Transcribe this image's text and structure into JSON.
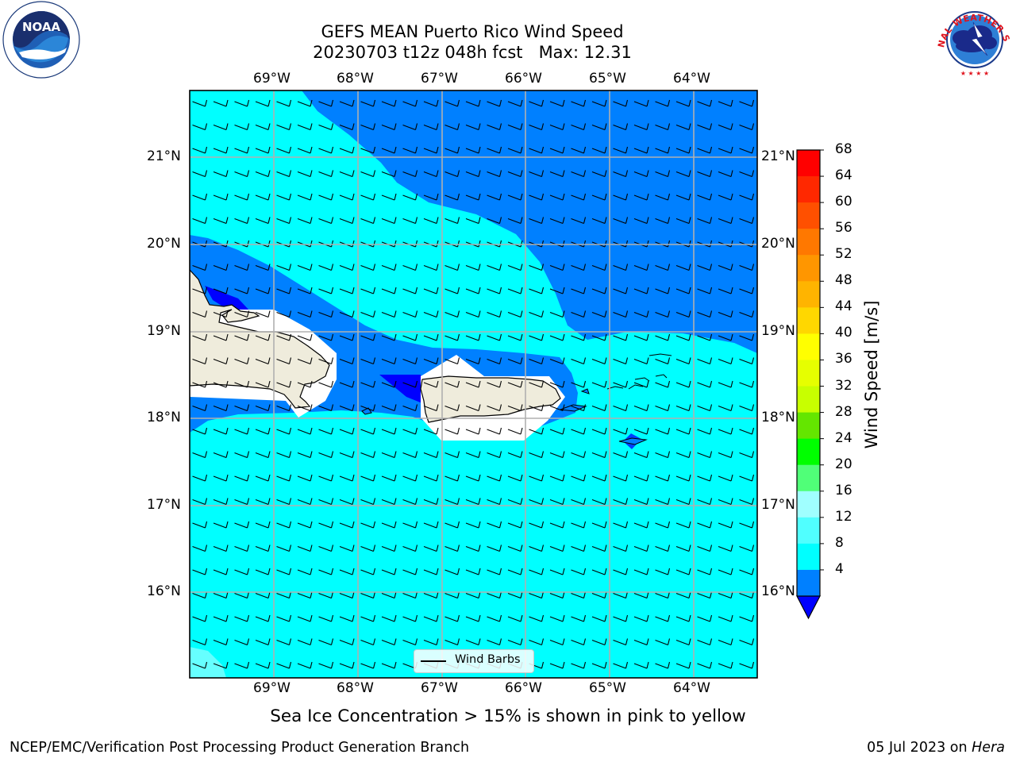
{
  "title": {
    "line1": "GEFS MEAN Puerto Rico Wind Speed",
    "line2": "20230703 t12z 048h fcst   Max: 12.31"
  },
  "logos": {
    "left": "noaa-logo",
    "left_text": "NOAA",
    "left_ring_text": "NATIONAL OCEANIC AND ATMOSPHERIC ADMINISTRATION · U.S. DEPARTMENT OF COMMERCE",
    "right": "nws-logo",
    "right_ring_text": "NATIONAL WEATHER SERVICE"
  },
  "map": {
    "lon_labels": [
      "69°W",
      "68°W",
      "67°W",
      "66°W",
      "65°W",
      "64°W"
    ],
    "lat_labels": [
      "21°N",
      "20°N",
      "19°N",
      "18°N",
      "17°N",
      "16°N"
    ],
    "colors": {
      "land": "#efecdc",
      "wind_4_8": "#0080ff",
      "wind_8_12": "#00ffff",
      "wind_12_16": "#66ffff",
      "wind_below_4": "#0000ff",
      "grid": "#b0b0b0"
    }
  },
  "legend": {
    "label": "Wind Barbs"
  },
  "colorbar": {
    "label": "Wind Speed [m/s]",
    "ticks": [
      "68",
      "64",
      "60",
      "56",
      "52",
      "48",
      "44",
      "40",
      "36",
      "32",
      "28",
      "24",
      "20",
      "16",
      "12",
      "8",
      "4"
    ],
    "colors": [
      "#ff0000",
      "#ff2800",
      "#ff5000",
      "#ff7800",
      "#ff9600",
      "#ffb400",
      "#ffd700",
      "#ffff00",
      "#e6ff00",
      "#c8ff00",
      "#64e600",
      "#00ff00",
      "#50ff78",
      "#a0ffff",
      "#50ffff",
      "#00ffff",
      "#0080ff"
    ],
    "extend_min_color": "#0000ff"
  },
  "caption": "Sea Ice Concentration > 15% is shown in pink to yellow",
  "footer": {
    "left": "NCEP/EMC/Verification Post Processing Product Generation Branch",
    "right_date": "05 Jul 2023 on ",
    "right_host": "Hera"
  }
}
